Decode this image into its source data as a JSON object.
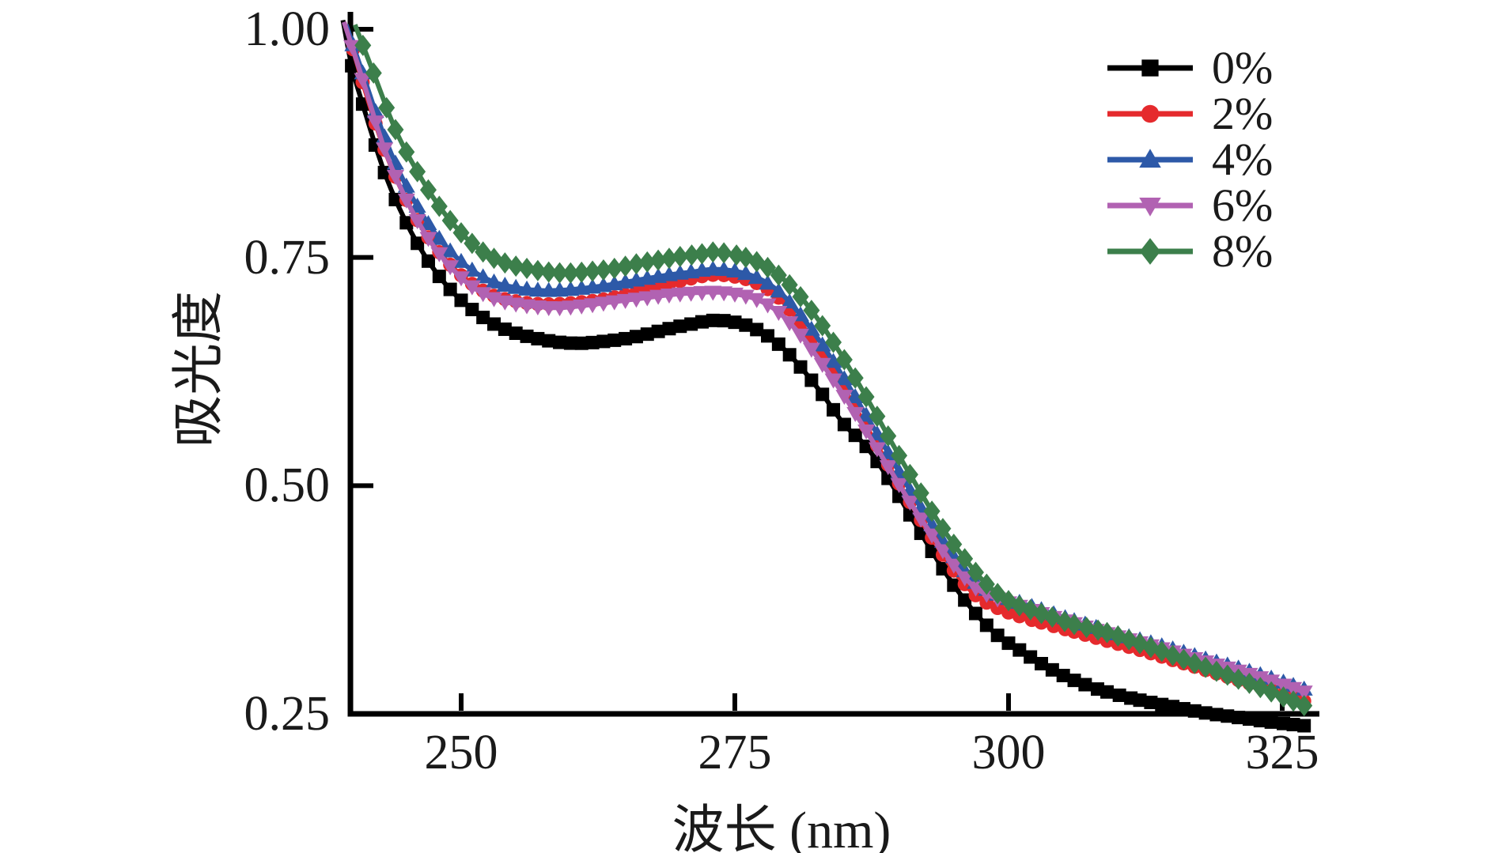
{
  "figure": {
    "background": "#ffffff"
  },
  "axes": {
    "xlabel": "波长 (nm)",
    "ylabel": "吸光度",
    "x_tick_labels": [
      "250",
      "275",
      "300",
      "325"
    ],
    "y_tick_labels": [
      "1.00",
      "0.75",
      "0.50",
      "0.25"
    ],
    "axis_color": "#000000"
  },
  "legend": {
    "position": "top-right",
    "items": [
      {
        "label": "0%",
        "color": "#000000",
        "marker": "square"
      },
      {
        "label": "2%",
        "color": "#e52a2d",
        "marker": "circle"
      },
      {
        "label": "4%",
        "color": "#2d59a8",
        "marker": "triangle-up"
      },
      {
        "label": "6%",
        "color": "#b162b2",
        "marker": "triangle-down"
      },
      {
        "label": "8%",
        "color": "#3c7f4b",
        "marker": "diamond"
      }
    ]
  },
  "chart_data": {
    "type": "line",
    "title": "",
    "xlabel": "波长 (nm)",
    "ylabel": "吸光度",
    "xlim": [
      239,
      327.5
    ],
    "ylim": [
      0.25,
      1.0
    ],
    "x_ticks": [
      250,
      275,
      300,
      325
    ],
    "y_ticks": [
      1.0,
      0.75,
      0.5,
      0.25
    ],
    "grid": false,
    "legend_position": "top-right",
    "marker_step_nm": 1,
    "series": [
      {
        "name": "0%",
        "color": "#000000",
        "marker": "square",
        "points": [
          [
            239.2,
            1.01
          ],
          [
            240,
            0.96
          ],
          [
            241,
            0.918
          ],
          [
            243,
            0.843
          ],
          [
            245,
            0.788
          ],
          [
            247,
            0.746
          ],
          [
            249,
            0.715
          ],
          [
            251,
            0.693
          ],
          [
            253,
            0.677
          ],
          [
            255,
            0.667
          ],
          [
            257,
            0.661
          ],
          [
            259,
            0.657
          ],
          [
            261,
            0.656
          ],
          [
            263,
            0.658
          ],
          [
            265,
            0.661
          ],
          [
            267,
            0.666
          ],
          [
            269,
            0.672
          ],
          [
            271,
            0.677
          ],
          [
            273,
            0.681
          ],
          [
            275,
            0.679
          ],
          [
            277,
            0.671
          ],
          [
            279,
            0.655
          ],
          [
            281,
            0.63
          ],
          [
            283,
            0.6
          ],
          [
            285,
            0.567
          ],
          [
            287,
            0.543
          ],
          [
            289,
            0.508
          ],
          [
            291,
            0.468
          ],
          [
            293,
            0.428
          ],
          [
            295,
            0.391
          ],
          [
            297,
            0.36
          ],
          [
            299,
            0.336
          ],
          [
            301,
            0.32
          ],
          [
            303,
            0.305
          ],
          [
            305,
            0.292
          ],
          [
            307,
            0.282
          ],
          [
            309,
            0.274
          ],
          [
            312,
            0.265
          ],
          [
            315,
            0.258
          ],
          [
            318,
            0.251
          ],
          [
            321,
            0.246
          ],
          [
            324,
            0.241
          ],
          [
            327,
            0.237
          ]
        ]
      },
      {
        "name": "2%",
        "color": "#e52a2d",
        "marker": "circle",
        "points": [
          [
            239.5,
            1.005
          ],
          [
            241,
            0.942
          ],
          [
            243,
            0.868
          ],
          [
            245,
            0.813
          ],
          [
            247,
            0.772
          ],
          [
            249,
            0.742
          ],
          [
            251,
            0.721
          ],
          [
            253,
            0.708
          ],
          [
            255,
            0.702
          ],
          [
            257,
            0.699
          ],
          [
            259,
            0.699
          ],
          [
            261,
            0.701
          ],
          [
            263,
            0.704
          ],
          [
            265,
            0.709
          ],
          [
            267,
            0.715
          ],
          [
            269,
            0.721
          ],
          [
            271,
            0.727
          ],
          [
            273,
            0.731
          ],
          [
            275,
            0.729
          ],
          [
            277,
            0.722
          ],
          [
            279,
            0.706
          ],
          [
            281,
            0.678
          ],
          [
            283,
            0.644
          ],
          [
            285,
            0.606
          ],
          [
            287,
            0.565
          ],
          [
            289,
            0.523
          ],
          [
            291,
            0.482
          ],
          [
            293,
            0.443
          ],
          [
            295,
            0.407
          ],
          [
            297,
            0.38
          ],
          [
            299,
            0.366
          ],
          [
            301,
            0.357
          ],
          [
            303,
            0.35
          ],
          [
            306,
            0.34
          ],
          [
            309,
            0.33
          ],
          [
            312,
            0.32
          ],
          [
            315,
            0.309
          ],
          [
            318,
            0.298
          ],
          [
            321,
            0.287
          ],
          [
            324,
            0.276
          ],
          [
            327,
            0.264
          ]
        ]
      },
      {
        "name": "4%",
        "color": "#2d59a8",
        "marker": "triangle-up",
        "points": [
          [
            239.5,
            1.005
          ],
          [
            241,
            0.952
          ],
          [
            243,
            0.882
          ],
          [
            245,
            0.828
          ],
          [
            247,
            0.787
          ],
          [
            249,
            0.757
          ],
          [
            251,
            0.736
          ],
          [
            253,
            0.723
          ],
          [
            255,
            0.717
          ],
          [
            257,
            0.714
          ],
          [
            259,
            0.714
          ],
          [
            261,
            0.716
          ],
          [
            263,
            0.719
          ],
          [
            265,
            0.723
          ],
          [
            267,
            0.727
          ],
          [
            269,
            0.731
          ],
          [
            271,
            0.734
          ],
          [
            273,
            0.737
          ],
          [
            275,
            0.735
          ],
          [
            277,
            0.728
          ],
          [
            279,
            0.713
          ],
          [
            281,
            0.687
          ],
          [
            283,
            0.654
          ],
          [
            285,
            0.617
          ],
          [
            287,
            0.577
          ],
          [
            289,
            0.536
          ],
          [
            291,
            0.495
          ],
          [
            293,
            0.457
          ],
          [
            295,
            0.422
          ],
          [
            297,
            0.394
          ],
          [
            299,
            0.381
          ],
          [
            301,
            0.372
          ],
          [
            303,
            0.364
          ],
          [
            306,
            0.352
          ],
          [
            309,
            0.341
          ],
          [
            312,
            0.331
          ],
          [
            315,
            0.321
          ],
          [
            318,
            0.31
          ],
          [
            321,
            0.3
          ],
          [
            324,
            0.289
          ],
          [
            327,
            0.277
          ]
        ]
      },
      {
        "name": "6%",
        "color": "#b162b2",
        "marker": "triangle-down",
        "points": [
          [
            239.3,
            1.008
          ],
          [
            241,
            0.945
          ],
          [
            243,
            0.869
          ],
          [
            245,
            0.813
          ],
          [
            247,
            0.771
          ],
          [
            249,
            0.74
          ],
          [
            251,
            0.718
          ],
          [
            253,
            0.705
          ],
          [
            255,
            0.699
          ],
          [
            257,
            0.696
          ],
          [
            259,
            0.695
          ],
          [
            261,
            0.697
          ],
          [
            263,
            0.7
          ],
          [
            265,
            0.703
          ],
          [
            267,
            0.706
          ],
          [
            269,
            0.709
          ],
          [
            271,
            0.711
          ],
          [
            273,
            0.712
          ],
          [
            275,
            0.71
          ],
          [
            277,
            0.704
          ],
          [
            279,
            0.69
          ],
          [
            281,
            0.665
          ],
          [
            283,
            0.633
          ],
          [
            285,
            0.598
          ],
          [
            287,
            0.56
          ],
          [
            289,
            0.521
          ],
          [
            291,
            0.482
          ],
          [
            293,
            0.446
          ],
          [
            295,
            0.413
          ],
          [
            297,
            0.388
          ],
          [
            299,
            0.376
          ],
          [
            301,
            0.368
          ],
          [
            303,
            0.36
          ],
          [
            306,
            0.349
          ],
          [
            309,
            0.338
          ],
          [
            312,
            0.328
          ],
          [
            315,
            0.318
          ],
          [
            318,
            0.307
          ],
          [
            321,
            0.297
          ],
          [
            324,
            0.286
          ],
          [
            327,
            0.274
          ]
        ]
      },
      {
        "name": "8%",
        "color": "#3c7f4b",
        "marker": "diamond",
        "points": [
          [
            240.3,
            1.005
          ],
          [
            242,
            0.952
          ],
          [
            244,
            0.89
          ],
          [
            246,
            0.844
          ],
          [
            248,
            0.806
          ],
          [
            250,
            0.777
          ],
          [
            252,
            0.756
          ],
          [
            254,
            0.744
          ],
          [
            256,
            0.738
          ],
          [
            258,
            0.734
          ],
          [
            260,
            0.733
          ],
          [
            262,
            0.735
          ],
          [
            264,
            0.738
          ],
          [
            266,
            0.743
          ],
          [
            268,
            0.747
          ],
          [
            270,
            0.751
          ],
          [
            272,
            0.754
          ],
          [
            273,
            0.756
          ],
          [
            274,
            0.755
          ],
          [
            276,
            0.75
          ],
          [
            278,
            0.739
          ],
          [
            280,
            0.72
          ],
          [
            282,
            0.692
          ],
          [
            284,
            0.657
          ],
          [
            286,
            0.618
          ],
          [
            288,
            0.576
          ],
          [
            290,
            0.533
          ],
          [
            292,
            0.492
          ],
          [
            294,
            0.453
          ],
          [
            296,
            0.42
          ],
          [
            298,
            0.392
          ],
          [
            300,
            0.374
          ],
          [
            302,
            0.364
          ],
          [
            304,
            0.356
          ],
          [
            306,
            0.348
          ],
          [
            309,
            0.339
          ],
          [
            312,
            0.327
          ],
          [
            315,
            0.314
          ],
          [
            318,
            0.301
          ],
          [
            321,
            0.288
          ],
          [
            324,
            0.274
          ],
          [
            327,
            0.259
          ]
        ]
      }
    ]
  }
}
